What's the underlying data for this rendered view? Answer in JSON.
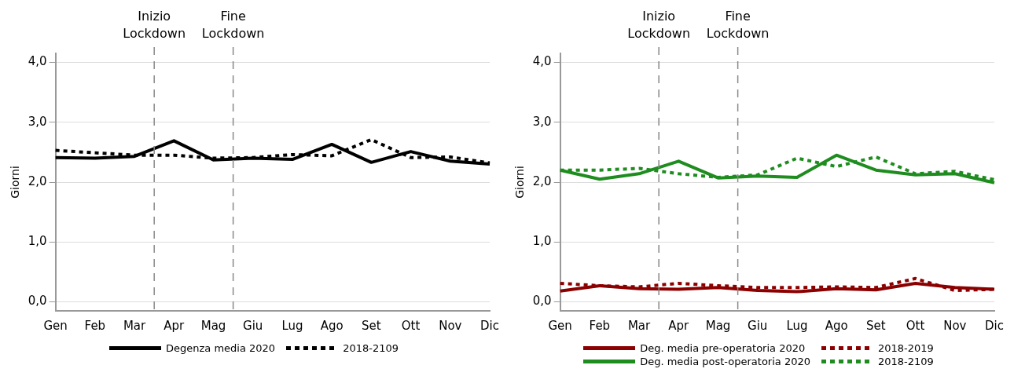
{
  "chart_data": [
    {
      "type": "line",
      "ylabel": "Giorni",
      "categories": [
        "Gen",
        "Feb",
        "Mar",
        "Apr",
        "Mag",
        "Giu",
        "Lug",
        "Ago",
        "Set",
        "Ott",
        "Nov",
        "Dic"
      ],
      "series": [
        {
          "name": "Degenza media 2020",
          "color": "#000000",
          "line_style": "solid",
          "values": [
            2.41,
            2.4,
            2.43,
            2.69,
            2.37,
            2.4,
            2.38,
            2.63,
            2.33,
            2.51,
            2.35,
            2.3
          ]
        },
        {
          "name": "2018-2109",
          "color": "#000000",
          "line_style": "dotted",
          "values": [
            2.53,
            2.49,
            2.45,
            2.45,
            2.4,
            2.41,
            2.46,
            2.44,
            2.71,
            2.41,
            2.42,
            2.32
          ]
        }
      ],
      "ylim": [
        -0.15,
        4.15
      ],
      "yticks": [
        {
          "value": 0,
          "label": "0,0"
        },
        {
          "value": 1,
          "label": "1,0"
        },
        {
          "value": 2,
          "label": "2,0"
        },
        {
          "value": 3,
          "label": "3,0"
        },
        {
          "value": 4,
          "label": "4,0"
        }
      ],
      "grid": "y",
      "legend": "bottom",
      "marker": "none",
      "annotations": [
        "Inizio Lockdown",
        "Fine Lockdown"
      ]
    },
    {
      "type": "line",
      "ylabel": "Giorni",
      "categories": [
        "Gen",
        "Feb",
        "Mar",
        "Apr",
        "Mag",
        "Giu",
        "Lug",
        "Ago",
        "Set",
        "Ott",
        "Nov",
        "Dic"
      ],
      "series": [
        {
          "name": "Deg. media pre-operatoria 2020",
          "color": "#8b0000",
          "line_style": "solid",
          "values": [
            0.18,
            0.27,
            0.22,
            0.21,
            0.24,
            0.19,
            0.17,
            0.22,
            0.2,
            0.31,
            0.24,
            0.21
          ]
        },
        {
          "name": "2018-2019",
          "color": "#8b0000",
          "line_style": "dotted",
          "values": [
            0.31,
            0.27,
            0.25,
            0.31,
            0.27,
            0.24,
            0.24,
            0.25,
            0.24,
            0.39,
            0.19,
            0.21
          ]
        },
        {
          "name": "Deg. media post-operatoria 2020",
          "color": "#1e8c1e",
          "line_style": "solid",
          "values": [
            2.2,
            2.05,
            2.14,
            2.35,
            2.07,
            2.1,
            2.08,
            2.45,
            2.2,
            2.12,
            2.14,
            1.99
          ]
        },
        {
          "name": "2018-2109",
          "color": "#1e8c1e",
          "line_style": "dotted",
          "values": [
            2.2,
            2.2,
            2.23,
            2.14,
            2.08,
            2.12,
            2.4,
            2.26,
            2.42,
            2.14,
            2.18,
            2.04
          ]
        }
      ],
      "ylim": [
        -0.15,
        4.15
      ],
      "yticks": [
        {
          "value": 0,
          "label": "0,0"
        },
        {
          "value": 1,
          "label": "1,0"
        },
        {
          "value": 2,
          "label": "2,0"
        },
        {
          "value": 3,
          "label": "3,0"
        },
        {
          "value": 4,
          "label": "4,0"
        }
      ],
      "grid": "y",
      "legend": "bottom",
      "marker": "none",
      "annotations": [
        "Inizio Lockdown",
        "Fine Lockdown"
      ]
    }
  ]
}
